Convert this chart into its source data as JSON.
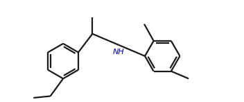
{
  "background_color": "#ffffff",
  "line_color": "#1a1a1a",
  "nh_color": "#0000bb",
  "line_width": 1.6,
  "figsize": [
    3.52,
    1.47
  ],
  "dpi": 100,
  "xlim": [
    0.0,
    7.2
  ],
  "ylim": [
    -0.2,
    2.8
  ]
}
